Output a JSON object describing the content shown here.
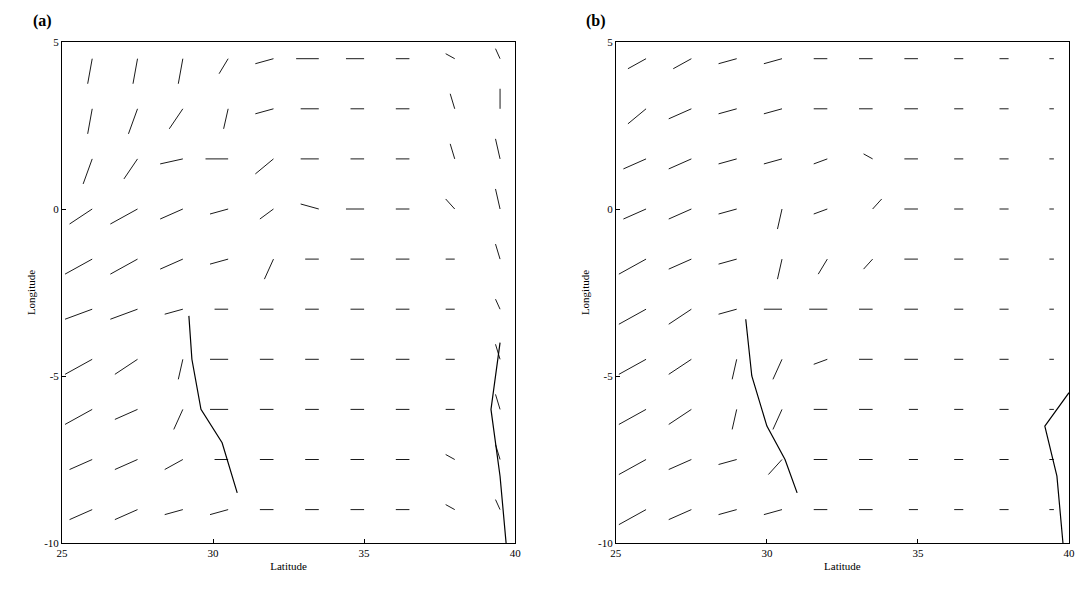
{
  "chart_data": [
    {
      "type": "vector",
      "title": "(a)",
      "x_label": "Latitude",
      "y_label": "Longitude",
      "xlim": [
        25,
        40
      ],
      "ylim": [
        -10,
        5
      ],
      "xticks": [
        25,
        30,
        35,
        40
      ],
      "yticks": [
        -10,
        -5,
        0,
        5
      ],
      "grid": false,
      "color": "#000000",
      "x": [
        26,
        27.5,
        29,
        30.5,
        32,
        33.5,
        35,
        36.5,
        38,
        39.5
      ],
      "y": [
        -9,
        -7.5,
        -6,
        -4.5,
        -3,
        -1.5,
        0,
        1.5,
        3,
        4.5
      ],
      "u": [
        [
          -5,
          -5,
          -4,
          -4,
          -3,
          -3,
          -3,
          -3,
          -2,
          -1
        ],
        [
          -5,
          -5,
          -4,
          -3,
          -3,
          -3,
          -3,
          -3,
          -2,
          -1
        ],
        [
          -6,
          -5,
          -2,
          -4,
          -3,
          -3,
          -3,
          -3,
          -2,
          -1
        ],
        [
          -6,
          -5,
          -1,
          -4,
          -3,
          -3,
          -3,
          -3,
          -2,
          -1
        ],
        [
          -6,
          -6,
          -4,
          -3,
          -3,
          -3,
          -3,
          -3,
          -2,
          -1
        ],
        [
          -6,
          -6,
          -5,
          -4,
          -2,
          -3,
          -3,
          -3,
          -2,
          -1
        ],
        [
          -5,
          -6,
          -5,
          -4,
          -3,
          -4,
          -4,
          -3,
          -2,
          -1
        ],
        [
          -2,
          -3,
          -5,
          -5,
          -4,
          -4,
          -3,
          -3,
          -1,
          -1
        ],
        [
          -1,
          -2,
          -3,
          -1,
          -4,
          -4,
          -3,
          -3,
          -1,
          0
        ],
        [
          -1,
          -1,
          -1,
          -2,
          -4,
          -5,
          -4,
          -3,
          -2,
          -1
        ]
      ],
      "v": [
        [
          -2,
          -2,
          -1,
          -1,
          0,
          0,
          0,
          0,
          1,
          2
        ],
        [
          -2,
          -2,
          -2,
          0,
          0,
          0,
          0,
          0,
          1,
          3
        ],
        [
          -3,
          -2,
          -4,
          0,
          0,
          0,
          0,
          0,
          0,
          3
        ],
        [
          -3,
          -3,
          -4,
          0,
          0,
          0,
          0,
          0,
          0,
          3
        ],
        [
          -2,
          -2,
          -1,
          0,
          0,
          0,
          0,
          0,
          0,
          2
        ],
        [
          -3,
          -3,
          -2,
          -1,
          -4,
          0,
          0,
          0,
          0,
          3
        ],
        [
          -3,
          -3,
          -2,
          -1,
          -2,
          1,
          0,
          0,
          2,
          4
        ],
        [
          -5,
          -4,
          -1,
          0,
          -3,
          0,
          0,
          0,
          3,
          4
        ],
        [
          -5,
          -5,
          -4,
          -4,
          -1,
          0,
          0,
          0,
          3,
          4
        ],
        [
          -5,
          -5,
          -5,
          -3,
          -1,
          0,
          0,
          0,
          1,
          2
        ]
      ],
      "outlines": [
        {
          "x": [
            29.2,
            29.3,
            29.6,
            30.3,
            30.8
          ],
          "y": [
            -3.2,
            -4.5,
            -6,
            -7,
            -8.5
          ]
        },
        {
          "x": [
            39.5,
            39.2,
            39.5,
            39.7
          ],
          "y": [
            -4,
            -6,
            -8,
            -10
          ]
        }
      ]
    },
    {
      "type": "vector",
      "title": "(b)",
      "x_label": "Latitude",
      "y_label": "Longitude",
      "xlim": [
        25,
        40
      ],
      "ylim": [
        -10,
        5
      ],
      "xticks": [
        25,
        30,
        35,
        40
      ],
      "yticks": [
        -10,
        -5,
        0,
        5
      ],
      "grid": false,
      "color": "#000000",
      "x": [
        26,
        27.5,
        29,
        30.5,
        32,
        33.5,
        35,
        36.5,
        38,
        39.5
      ],
      "y": [
        -9,
        -7.5,
        -6,
        -4.5,
        -3,
        -1.5,
        0,
        1.5,
        3,
        4.5
      ],
      "u": [
        [
          -6,
          -5,
          -4,
          -4,
          -3,
          -3,
          -2,
          -2,
          -2,
          -1
        ],
        [
          -6,
          -5,
          -4,
          -3,
          -3,
          -3,
          -2,
          -2,
          -2,
          -1
        ],
        [
          -6,
          -5,
          -1,
          -2,
          -3,
          -3,
          -2,
          -2,
          -2,
          -1
        ],
        [
          -6,
          -5,
          -1,
          -2,
          -3,
          -3,
          -3,
          -2,
          -2,
          -1
        ],
        [
          -6,
          -5,
          -4,
          -4,
          -4,
          -3,
          -3,
          -2,
          -2,
          -1
        ],
        [
          -6,
          -5,
          -4,
          -1,
          -2,
          -2,
          -3,
          -2,
          -2,
          -1
        ],
        [
          -5,
          -5,
          -4,
          -1,
          -3,
          2,
          -3,
          -2,
          -2,
          -1
        ],
        [
          -5,
          -5,
          -4,
          -4,
          -3,
          -2,
          -3,
          -2,
          -2,
          -1
        ],
        [
          -4,
          -5,
          -4,
          -4,
          -3,
          -3,
          -3,
          -2,
          -2,
          -1
        ],
        [
          -4,
          -4,
          -4,
          -4,
          -3,
          -3,
          -3,
          -2,
          -2,
          -1
        ]
      ],
      "v": [
        [
          -3,
          -2,
          -1,
          -1,
          0,
          0,
          0,
          0,
          0,
          0
        ],
        [
          -3,
          -2,
          -1,
          -3,
          0,
          0,
          0,
          0,
          0,
          0
        ],
        [
          -3,
          -3,
          -4,
          -4,
          0,
          0,
          0,
          0,
          0,
          0
        ],
        [
          -3,
          -3,
          -4,
          -4,
          -1,
          0,
          0,
          0,
          0,
          0
        ],
        [
          -3,
          -3,
          -1,
          0,
          0,
          0,
          0,
          0,
          0,
          0
        ],
        [
          -3,
          -2,
          -1,
          -4,
          -3,
          -2,
          0,
          0,
          0,
          0
        ],
        [
          -2,
          -2,
          -1,
          -4,
          -1,
          2,
          0,
          0,
          0,
          0
        ],
        [
          -2,
          -2,
          -1,
          -1,
          -1,
          1,
          0,
          0,
          0,
          0
        ],
        [
          -3,
          -2,
          -1,
          -1,
          0,
          0,
          0,
          0,
          0,
          0
        ],
        [
          -2,
          -2,
          -1,
          -1,
          0,
          0,
          0,
          0,
          0,
          0
        ]
      ],
      "outlines": [
        {
          "x": [
            29.3,
            29.5,
            30,
            30.6,
            31
          ],
          "y": [
            -3.3,
            -5,
            -6.5,
            -7.5,
            -8.5
          ]
        },
        {
          "x": [
            40,
            39.2,
            39.6,
            39.8
          ],
          "y": [
            -5.5,
            -6.5,
            -8,
            -10
          ]
        }
      ]
    }
  ]
}
